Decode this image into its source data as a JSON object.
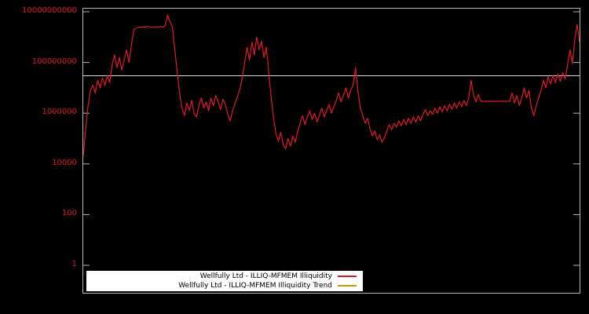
{
  "colors": {
    "background": "#000000",
    "plot_border": "#b4b4b4",
    "series_red": "#e2182a",
    "trend_plot_line": "#dadada",
    "trend_legend_swatch": "#b0a000",
    "tick_label": "#e2182a",
    "legend_background": "#ffffff",
    "legend_text": "#000000"
  },
  "y_axis": {
    "tick_labels": [
      "10000000000",
      "100000000",
      "1000000",
      "10000",
      "100",
      "1"
    ],
    "log_values": [
      10,
      8,
      6,
      4,
      2,
      0
    ]
  },
  "legend": {
    "entries": [
      {
        "label": "Wellfully Ltd - ILLIQ-MFMEM Illiquidity",
        "color": "#e2182a"
      },
      {
        "label": "Wellfully Ltd - ILLIQ-MFMEM Illiquidity Trend",
        "color": "#b0a000"
      }
    ]
  },
  "chart_data": {
    "type": "line",
    "title": "",
    "y_scale": "log10",
    "ylim": [
      1,
      10000000000
    ],
    "y_tick_labels": [
      "1",
      "100",
      "10000",
      "1000000",
      "100000000",
      "10000000000"
    ],
    "x_tick_labels": [],
    "grid": false,
    "legend_position": "bottom-center",
    "series": [
      {
        "name": "Wellfully Ltd - ILLIQ-MFMEM Illiquidity",
        "color": "#e2182a",
        "values_log10": [
          4.3,
          5.4,
          6.3,
          6.9,
          7.1,
          6.8,
          7.3,
          7.0,
          7.4,
          7.1,
          7.5,
          7.2,
          7.9,
          8.3,
          7.8,
          8.2,
          7.7,
          8.1,
          8.5,
          8.0,
          8.7,
          9.3,
          9.35,
          9.4,
          9.38,
          9.41,
          9.39,
          9.42,
          9.4,
          9.38,
          9.41,
          9.39,
          9.42,
          9.4,
          9.45,
          9.88,
          9.6,
          9.42,
          8.5,
          7.6,
          6.8,
          6.2,
          5.9,
          6.4,
          6.1,
          6.5,
          6.0,
          5.85,
          6.3,
          6.6,
          6.2,
          6.45,
          6.1,
          6.6,
          6.3,
          6.7,
          6.45,
          6.15,
          6.55,
          6.35,
          5.95,
          5.7,
          6.1,
          6.4,
          6.65,
          6.95,
          7.4,
          8.0,
          8.6,
          8.1,
          8.8,
          8.3,
          9.0,
          8.5,
          8.85,
          8.2,
          8.6,
          7.6,
          6.6,
          5.8,
          5.2,
          4.9,
          5.25,
          4.75,
          4.6,
          5.0,
          4.7,
          5.1,
          4.85,
          5.3,
          5.6,
          5.9,
          5.55,
          5.85,
          6.1,
          5.75,
          6.0,
          5.65,
          5.9,
          6.2,
          5.85,
          6.1,
          6.35,
          6.0,
          6.25,
          6.5,
          6.8,
          6.45,
          6.7,
          7.0,
          6.6,
          6.9,
          7.1,
          7.8,
          6.9,
          6.2,
          5.9,
          5.6,
          5.8,
          5.4,
          5.1,
          5.3,
          4.95,
          5.15,
          4.85,
          5.05,
          5.3,
          5.55,
          5.35,
          5.6,
          5.45,
          5.7,
          5.5,
          5.75,
          5.55,
          5.8,
          5.6,
          5.85,
          5.65,
          5.9,
          5.7,
          5.95,
          6.15,
          5.9,
          6.1,
          5.95,
          6.2,
          6.0,
          6.25,
          6.05,
          6.3,
          6.1,
          6.35,
          6.15,
          6.4,
          6.2,
          6.45,
          6.25,
          6.5,
          6.3,
          6.6,
          7.3,
          6.7,
          6.45,
          6.75,
          6.47,
          6.47,
          6.47,
          6.47,
          6.47,
          6.47,
          6.47,
          6.47,
          6.47,
          6.47,
          6.47,
          6.47,
          6.47,
          6.8,
          6.4,
          6.7,
          6.3,
          6.6,
          7.0,
          6.6,
          6.9,
          6.2,
          5.9,
          6.3,
          6.6,
          6.9,
          7.3,
          7.0,
          7.45,
          7.15,
          7.5,
          7.2,
          7.55,
          7.25,
          7.6,
          7.35,
          7.9,
          8.5,
          7.95,
          8.9,
          9.5,
          8.8
        ]
      },
      {
        "name": "Wellfully Ltd - ILLIQ-MFMEM Illiquidity Trend",
        "color_legend": "#b0a000",
        "color_plot": "#dadada",
        "constant_value": 30000000
      }
    ]
  }
}
